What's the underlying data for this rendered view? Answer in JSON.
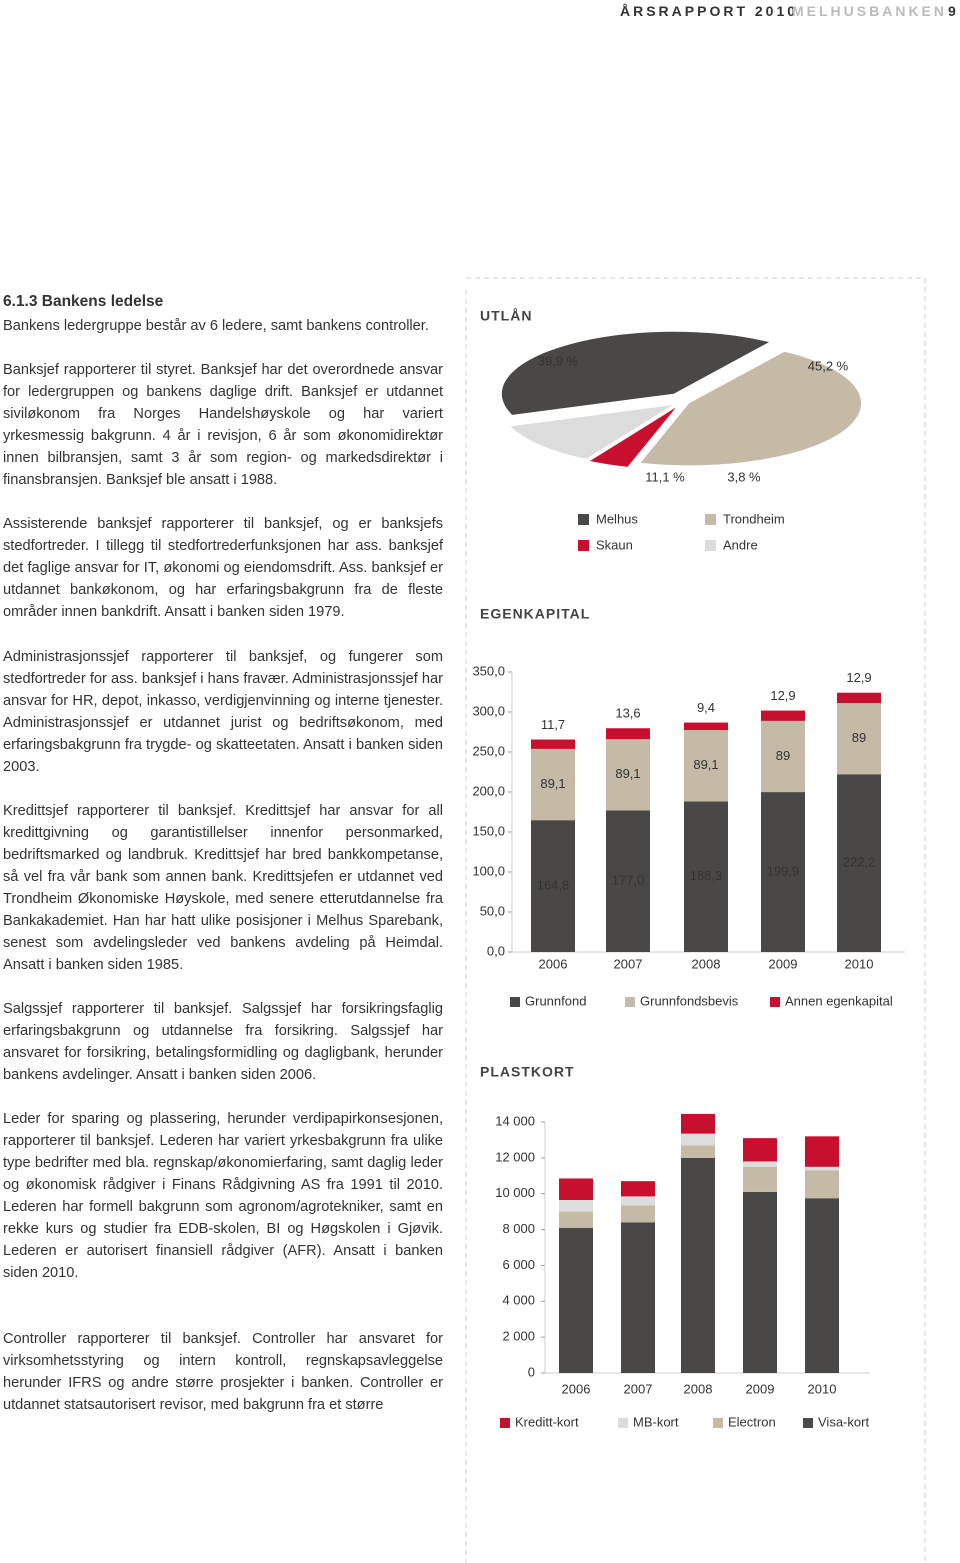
{
  "header": {
    "report": "ÅRSRAPPORT 2010",
    "company": "MELHUSBANKEN",
    "page": "9"
  },
  "section": {
    "title": "6.1.3 Bankens ledelse",
    "paragraphs": [
      "Bankens ledergruppe består av 6 ledere, samt bankens controller.",
      "Banksjef rapporterer til styret. Banksjef har det overordnede ansvar for ledergruppen og bankens daglige drift. Banksjef er utdannet siviløkonom fra Norges Handelshøyskole og har variert yrkesmessig bakgrunn. 4 år i revisjon, 6 år som økonomidirektør innen bilbransjen, samt 3 år som region- og markedsdirektør i finansbransjen. Banksjef ble ansatt i 1988.",
      "Assisterende banksjef rapporterer til banksjef, og er banksjefs stedfortreder. I tillegg til stedfortrederfunksjonen har ass. banksjef det faglige ansvar for IT, økonomi og eiendomsdrift. Ass. banksjef er utdannet bankøkonom, og har erfaringsbakgrunn fra de fleste områder innen bankdrift. Ansatt i banken siden 1979.",
      "Administrasjonssjef rapporterer til banksjef, og fungerer som stedfortreder for ass. banksjef i hans fravær. Administrasjonssjef har ansvar for HR, depot, inkasso, verdigjenvinning og interne tjenester. Administrasjonssjef er utdannet jurist og bedriftsøkonom, med erfaringsbakgrunn fra trygde- og skatteetaten. Ansatt i banken siden 2003.",
      "Kredittsjef rapporterer til banksjef. Kredittsjef har ansvar for all kredittgivning og garantistillelser innenfor personmarked, bedriftsmarked og landbruk. Kredittsjef har bred bankkompetanse, så vel fra vår bank som annen bank. Kredittsjefen er utdannet ved Trondheim Økonomiske Høyskole, med senere etterutdannelse fra Bankakademiet. Han har hatt ulike posisjoner i Melhus Sparebank, senest som avdelingsleder ved bankens avdeling på Heimdal. Ansatt i banken siden 1985.",
      "Salgssjef rapporterer til banksjef. Salgssjef har forsikringsfaglig erfaringsbakgrunn og utdannelse fra forsikring. Salgssjef har ansvaret for forsikring, betalingsformidling og dagligbank, herunder bankens avdelinger. Ansatt i banken siden 2006.",
      "Leder for sparing og plassering, herunder verdipapirkonsesjonen, rapporterer til banksjef. Lederen har variert yrkesbakgrunn fra ulike type bedrifter med bla. regnskap/økonomierfaring, samt daglig leder og økonomisk rådgiver i Finans Rådgivning AS fra 1991 til 2010. Lederen har formell bakgrunn som agronom/agrotekniker, samt en rekke kurs og studier fra EDB-skolen, BI og Høgskolen i Gjøvik. Lederen er autorisert finansiell rådgiver (AFR). Ansatt i banken siden 2010.",
      "Controller rapporterer til banksjef. Controller har ansvaret for virksomhetsstyring og intern kontroll, regnskapsavleggelse herunder IFRS og andre større prosjekter i banken. Controller er utdannet statsautorisert revisor, med bakgrunn fra et større"
    ]
  },
  "chart_data": [
    {
      "type": "pie",
      "title": "UTLÅN",
      "categories": [
        "Melhus",
        "Trondheim",
        "Skaun",
        "Andre"
      ],
      "values": [
        39.9,
        45.2,
        3.8,
        11.1
      ],
      "value_labels": [
        "39,9 %",
        "45,2 %",
        "3,8 %",
        "11,1 %"
      ],
      "colors": [
        "#4a4846",
        "#c4baa6",
        "#c8102e",
        "#dcdcdc"
      ]
    },
    {
      "type": "bar",
      "stacked": true,
      "title": "EGENKAPITAL",
      "categories": [
        "2006",
        "2007",
        "2008",
        "2009",
        "2010"
      ],
      "series": [
        {
          "name": "Grunnfond",
          "color": "#4a4846",
          "values": [
            164.8,
            177.0,
            188.3,
            199.9,
            222.2
          ],
          "value_labels": [
            "164,8",
            "177,0",
            "188,3",
            "199,9",
            "222,2"
          ]
        },
        {
          "name": "Grunnfondsbevis",
          "color": "#c4baa6",
          "values": [
            89.1,
            89.1,
            89.1,
            89,
            89
          ],
          "value_labels": [
            "89,1",
            "89,1",
            "89,1",
            "89",
            "89"
          ]
        },
        {
          "name": "Annen egenkapital",
          "color": "#c8102e",
          "values": [
            11.7,
            13.6,
            9.4,
            12.9,
            12.9
          ],
          "value_labels": [
            "11,7",
            "13,6",
            "9,4",
            "12,9",
            "12,9"
          ]
        }
      ],
      "ylim": [
        0,
        350
      ],
      "yticks": [
        {
          "value": 0,
          "label": "0,0"
        },
        {
          "value": 50,
          "label": "50,0"
        },
        {
          "value": 100,
          "label": "100,0"
        },
        {
          "value": 150,
          "label": "150,0"
        },
        {
          "value": 200,
          "label": "200,0"
        },
        {
          "value": 250,
          "label": "250,0"
        },
        {
          "value": 300,
          "label": "300,0"
        },
        {
          "value": 350,
          "label": "350,0"
        }
      ]
    },
    {
      "type": "bar",
      "stacked": true,
      "title": "PLASTKORT",
      "categories": [
        "2006",
        "2007",
        "2008",
        "2009",
        "2010"
      ],
      "series": [
        {
          "name": "Visa-kort",
          "color": "#4a4846",
          "values": [
            8100,
            8400,
            12000,
            10100,
            9750
          ]
        },
        {
          "name": "Electron",
          "color": "#c4baa6",
          "values": [
            900,
            950,
            700,
            1400,
            1550
          ]
        },
        {
          "name": "MB-kort",
          "color": "#dcdcdc",
          "values": [
            650,
            500,
            650,
            300,
            200
          ]
        },
        {
          "name": "Kreditt-kort",
          "color": "#c8102e",
          "values": [
            1200,
            850,
            1100,
            1300,
            1700
          ]
        }
      ],
      "legend_order": [
        "Kreditt-kort",
        "MB-kort",
        "Electron",
        "Visa-kort"
      ],
      "ylim": [
        0,
        14000
      ],
      "yticks": [
        0,
        {
          "value": 2000,
          "label": "2 000"
        },
        {
          "value": 4000,
          "label": "4 000"
        },
        {
          "value": 6000,
          "label": "6 000"
        },
        {
          "value": 8000,
          "label": "8 000"
        },
        {
          "value": 10000,
          "label": "10 000"
        },
        {
          "value": 12000,
          "label": "12 000"
        },
        {
          "value": 14000,
          "label": "14 000"
        }
      ]
    }
  ]
}
